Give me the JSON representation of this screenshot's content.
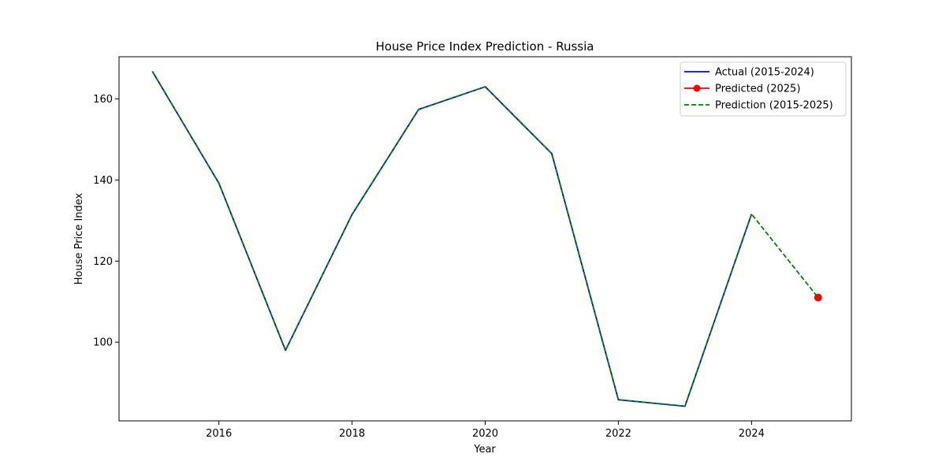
{
  "chart_data": {
    "type": "line",
    "title": "House Price Index Prediction - Russia",
    "xlabel": "Year",
    "ylabel": "House Price Index",
    "xlim": [
      2014.5,
      2025.5
    ],
    "ylim": [
      80.6,
      170.4
    ],
    "x_ticks": [
      2016,
      2018,
      2020,
      2022,
      2024
    ],
    "x_tick_labels": [
      "2016",
      "2018",
      "2020",
      "2022",
      "2024"
    ],
    "y_ticks": [
      100,
      120,
      140,
      160
    ],
    "y_tick_labels": [
      "100",
      "120",
      "140",
      "160"
    ],
    "grid": false,
    "legend_position": "top-right",
    "series": [
      {
        "name": "Actual (2015-2024)",
        "color": "#0000ff",
        "style": "solid",
        "marker": "none",
        "x": [
          2015,
          2016,
          2017,
          2018,
          2019,
          2020,
          2021,
          2022,
          2023,
          2024
        ],
        "values": [
          166.8,
          139.2,
          98.0,
          131.5,
          157.4,
          163.0,
          146.5,
          85.8,
          84.2,
          131.6
        ]
      },
      {
        "name": "Predicted (2025)",
        "color": "#ff0000",
        "style": "solid",
        "marker": "circle",
        "x": [
          2025
        ],
        "values": [
          111.0
        ]
      },
      {
        "name": "Prediction (2015-2025)",
        "color": "#008000",
        "style": "dashed",
        "marker": "none",
        "x": [
          2015,
          2016,
          2017,
          2018,
          2019,
          2020,
          2021,
          2022,
          2023,
          2024,
          2025
        ],
        "values": [
          166.8,
          139.2,
          98.0,
          131.5,
          157.4,
          163.0,
          146.5,
          85.8,
          84.2,
          131.6,
          111.0
        ]
      }
    ]
  }
}
